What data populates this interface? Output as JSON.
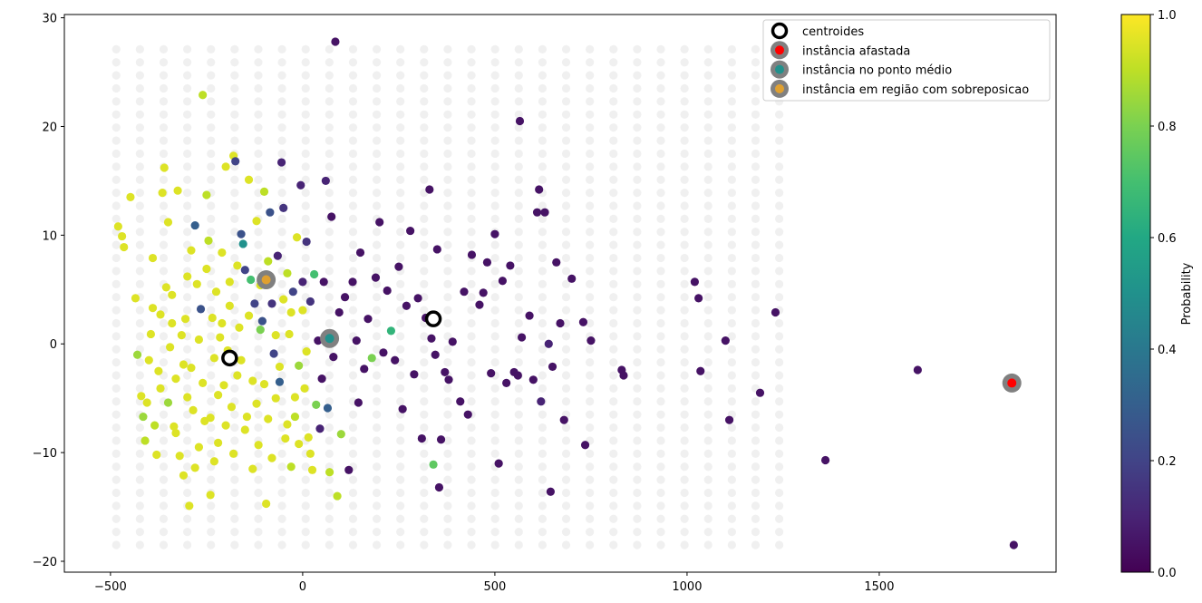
{
  "chart_data": {
    "type": "scatter",
    "title": "",
    "xlabel": "",
    "ylabel": "",
    "xlim": [
      -620,
      1960
    ],
    "ylim": [
      -21,
      30.3
    ],
    "x_ticks": [
      -500,
      0,
      500,
      1000,
      1500
    ],
    "y_ticks": [
      -20,
      -10,
      0,
      10,
      20,
      30
    ],
    "x_tick_labels": [
      "−500",
      "0",
      "500",
      "1000",
      "1500"
    ],
    "y_tick_labels": [
      "−20",
      "−10",
      "0",
      "10",
      "20",
      "30"
    ],
    "grid": false,
    "colormap": "viridis",
    "colorbar": {
      "label": "Probability",
      "range": [
        0,
        1
      ],
      "ticks": [
        "0.0",
        "0.2",
        "0.4",
        "0.6",
        "0.8",
        "1.0"
      ]
    },
    "background_grid": {
      "x_start": -485,
      "x_step": 61.6,
      "x_count": 29,
      "y_start": -18.5,
      "y_step": 1.2,
      "y_count": 39,
      "color": "#f0f0f0"
    },
    "legend": {
      "placement": "top-right",
      "entries": [
        {
          "label": "centroides",
          "marker": "ring",
          "color": "#000000"
        },
        {
          "label": "instância afastada",
          "marker": "dot",
          "color": "#ff0000"
        },
        {
          "label": "instância no ponto médio",
          "marker": "dot",
          "color": "#21918c"
        },
        {
          "label": "instância em região com sobreposicao",
          "marker": "dot",
          "color": "#e0a030"
        }
      ]
    },
    "centroids": [
      {
        "x": -190,
        "y": -1.3
      },
      {
        "x": 340,
        "y": 2.3
      }
    ],
    "highlights": [
      {
        "name": "instância afastada",
        "x": 1845,
        "y": -3.6,
        "color": "#ff0000"
      },
      {
        "name": "instância no ponto médio",
        "x": 70,
        "y": 0.5,
        "color": "#21918c"
      },
      {
        "name": "instância em região com sobreposicao",
        "x": -95,
        "y": 5.9,
        "color": "#e0a030"
      }
    ],
    "points": [
      [
        -480,
        10.8,
        0.95
      ],
      [
        -470,
        9.9,
        0.95
      ],
      [
        -465,
        8.9,
        0.95
      ],
      [
        -435,
        4.2,
        0.95
      ],
      [
        -430,
        -1,
        0.85
      ],
      [
        -420,
        -4.8,
        0.95
      ],
      [
        -415,
        -6.7,
        0.85
      ],
      [
        -410,
        -8.9,
        0.9
      ],
      [
        -405,
        -5.4,
        0.95
      ],
      [
        -400,
        -1.5,
        0.95
      ],
      [
        -395,
        0.9,
        0.95
      ],
      [
        -390,
        3.3,
        0.95
      ],
      [
        -385,
        -7.5,
        0.9
      ],
      [
        -380,
        -10.2,
        0.95
      ],
      [
        -375,
        -2.5,
        0.95
      ],
      [
        -370,
        2.7,
        0.95
      ],
      [
        -365,
        13.9,
        0.95
      ],
      [
        -360,
        16.2,
        0.95
      ],
      [
        -355,
        5.2,
        0.95
      ],
      [
        -350,
        -5.4,
        0.85
      ],
      [
        -345,
        -0.3,
        0.95
      ],
      [
        -340,
        1.9,
        0.95
      ],
      [
        -335,
        -7.6,
        0.95
      ],
      [
        -330,
        -3.2,
        0.95
      ],
      [
        -325,
        14.1,
        0.95
      ],
      [
        -320,
        -10.3,
        0.95
      ],
      [
        -315,
        0.8,
        0.95
      ],
      [
        -310,
        -1.9,
        0.95
      ],
      [
        -305,
        2.3,
        0.95
      ],
      [
        -300,
        -4.9,
        0.95
      ],
      [
        -295,
        -14.9,
        0.95
      ],
      [
        -290,
        8.6,
        0.95
      ],
      [
        -285,
        -6.1,
        0.95
      ],
      [
        -280,
        10.9,
        0.3
      ],
      [
        -275,
        5.5,
        0.95
      ],
      [
        -270,
        -9.5,
        0.95
      ],
      [
        -265,
        3.2,
        0.25
      ],
      [
        -260,
        22.9,
        0.9
      ],
      [
        -255,
        -7.1,
        0.95
      ],
      [
        -250,
        13.7,
        0.9
      ],
      [
        -245,
        9.5,
        0.9
      ],
      [
        -240,
        -13.9,
        0.95
      ],
      [
        -235,
        2.4,
        0.95
      ],
      [
        -230,
        -1.3,
        0.95
      ],
      [
        -225,
        4.8,
        0.95
      ],
      [
        -220,
        -9.1,
        0.95
      ],
      [
        -215,
        0.6,
        0.95
      ],
      [
        -210,
        8.4,
        0.95
      ],
      [
        -205,
        -3.8,
        0.95
      ],
      [
        -200,
        16.3,
        0.95
      ],
      [
        -195,
        -0.6,
        0.95
      ],
      [
        -190,
        5.7,
        0.95
      ],
      [
        -185,
        -5.8,
        0.95
      ],
      [
        -180,
        17.3,
        0.95
      ],
      [
        -175,
        16.8,
        0.2
      ],
      [
        -170,
        -2.9,
        0.95
      ],
      [
        -165,
        1.5,
        0.95
      ],
      [
        -160,
        10.1,
        0.25
      ],
      [
        -155,
        9.2,
        0.5
      ],
      [
        -150,
        6.8,
        0.2
      ],
      [
        -145,
        -6.7,
        0.95
      ],
      [
        -140,
        15.1,
        0.95
      ],
      [
        -135,
        5.9,
        0.7
      ],
      [
        -130,
        -3.4,
        0.95
      ],
      [
        -125,
        3.7,
        0.2
      ],
      [
        -120,
        11.3,
        0.95
      ],
      [
        -115,
        -9.3,
        0.95
      ],
      [
        -110,
        1.3,
        0.8
      ],
      [
        -105,
        2.1,
        0.25
      ],
      [
        -100,
        14,
        0.9
      ],
      [
        -95,
        -14.7,
        0.95
      ],
      [
        -90,
        7.6,
        0.9
      ],
      [
        -85,
        12.1,
        0.25
      ],
      [
        -80,
        3.7,
        0.15
      ],
      [
        -75,
        -0.9,
        0.2
      ],
      [
        -70,
        -5,
        0.95
      ],
      [
        -65,
        8.1,
        0.1
      ],
      [
        -60,
        -3.5,
        0.3
      ],
      [
        -55,
        16.7,
        0.1
      ],
      [
        -50,
        12.5,
        0.15
      ],
      [
        -45,
        -8.7,
        0.95
      ],
      [
        -40,
        6.5,
        0.9
      ],
      [
        -35,
        0.9,
        0.95
      ],
      [
        -30,
        -11.3,
        0.9
      ],
      [
        -25,
        4.8,
        0.2
      ],
      [
        -20,
        -6.7,
        0.9
      ],
      [
        -15,
        9.8,
        0.95
      ],
      [
        -10,
        -2,
        0.85
      ],
      [
        -5,
        14.6,
        0.1
      ],
      [
        0,
        5.7,
        0.1
      ],
      [
        5,
        -4.1,
        0.95
      ],
      [
        10,
        9.4,
        0.15
      ],
      [
        15,
        -8.6,
        0.95
      ],
      [
        20,
        3.9,
        0.15
      ],
      [
        25,
        -11.6,
        0.95
      ],
      [
        30,
        6.4,
        0.7
      ],
      [
        35,
        -5.6,
        0.8
      ],
      [
        40,
        0.3,
        0.05
      ],
      [
        45,
        -7.8,
        0.1
      ],
      [
        50,
        -3.2,
        0.05
      ],
      [
        55,
        5.7,
        0.05
      ],
      [
        60,
        15,
        0.1
      ],
      [
        65,
        -5.9,
        0.3
      ],
      [
        70,
        -11.8,
        0.9
      ],
      [
        75,
        11.7,
        0.05
      ],
      [
        80,
        -1.2,
        0.05
      ],
      [
        85,
        27.8,
        0.05
      ],
      [
        90,
        -14,
        0.9
      ],
      [
        95,
        2.9,
        0.05
      ],
      [
        100,
        -8.3,
        0.85
      ],
      [
        110,
        4.3,
        0.05
      ],
      [
        120,
        -11.6,
        0.05
      ],
      [
        130,
        5.7,
        0.05
      ],
      [
        140,
        0.3,
        0.05
      ],
      [
        145,
        -5.4,
        0.05
      ],
      [
        150,
        8.4,
        0.05
      ],
      [
        160,
        -2.3,
        0.05
      ],
      [
        170,
        2.3,
        0.05
      ],
      [
        180,
        -1.3,
        0.8
      ],
      [
        190,
        6.1,
        0.05
      ],
      [
        200,
        11.2,
        0.05
      ],
      [
        210,
        -0.8,
        0.05
      ],
      [
        220,
        4.9,
        0.05
      ],
      [
        230,
        1.2,
        0.65
      ],
      [
        240,
        -1.5,
        0.05
      ],
      [
        250,
        7.1,
        0.05
      ],
      [
        260,
        -6,
        0.05
      ],
      [
        270,
        3.5,
        0.05
      ],
      [
        280,
        10.4,
        0.05
      ],
      [
        290,
        -2.8,
        0.05
      ],
      [
        300,
        4.2,
        0.05
      ],
      [
        310,
        -8.7,
        0.05
      ],
      [
        320,
        2.4,
        0.05
      ],
      [
        330,
        14.2,
        0.05
      ],
      [
        335,
        0.5,
        0.05
      ],
      [
        340,
        -11.1,
        0.75
      ],
      [
        345,
        -1,
        0.05
      ],
      [
        350,
        8.7,
        0.05
      ],
      [
        355,
        -13.2,
        0.05
      ],
      [
        360,
        -8.8,
        0.05
      ],
      [
        370,
        -2.6,
        0.05
      ],
      [
        380,
        -3.3,
        0.05
      ],
      [
        390,
        0.2,
        0.05
      ],
      [
        410,
        -5.3,
        0.05
      ],
      [
        420,
        4.8,
        0.05
      ],
      [
        430,
        -6.5,
        0.05
      ],
      [
        440,
        8.2,
        0.05
      ],
      [
        460,
        3.6,
        0.05
      ],
      [
        470,
        4.7,
        0.05
      ],
      [
        480,
        7.5,
        0.05
      ],
      [
        490,
        -2.7,
        0.05
      ],
      [
        500,
        10.1,
        0.05
      ],
      [
        510,
        -11,
        0.05
      ],
      [
        520,
        5.8,
        0.05
      ],
      [
        530,
        -3.6,
        0.05
      ],
      [
        540,
        7.2,
        0.05
      ],
      [
        550,
        -2.6,
        0.05
      ],
      [
        560,
        -2.9,
        0.05
      ],
      [
        565,
        20.5,
        0.05
      ],
      [
        570,
        0.6,
        0.05
      ],
      [
        590,
        2.6,
        0.05
      ],
      [
        600,
        -3.3,
        0.05
      ],
      [
        610,
        12.1,
        0.05
      ],
      [
        615,
        14.2,
        0.05
      ],
      [
        620,
        -5.3,
        0.1
      ],
      [
        630,
        12.1,
        0.05
      ],
      [
        640,
        0,
        0.1
      ],
      [
        645,
        -13.6,
        0.05
      ],
      [
        650,
        -2.1,
        0.05
      ],
      [
        660,
        7.5,
        0.05
      ],
      [
        670,
        1.9,
        0.05
      ],
      [
        680,
        -7,
        0.05
      ],
      [
        700,
        6,
        0.05
      ],
      [
        730,
        2,
        0.05
      ],
      [
        735,
        -9.3,
        0.05
      ],
      [
        750,
        0.3,
        0.05
      ],
      [
        830,
        -2.4,
        0.05
      ],
      [
        835,
        -2.9,
        0.05
      ],
      [
        1020,
        5.7,
        0.05
      ],
      [
        1030,
        4.2,
        0.05
      ],
      [
        1035,
        -2.5,
        0.05
      ],
      [
        1100,
        0.3,
        0.05
      ],
      [
        1110,
        -7,
        0.05
      ],
      [
        1190,
        -4.5,
        0.05
      ],
      [
        1230,
        2.9,
        0.05
      ],
      [
        1360,
        -10.7,
        0.05
      ],
      [
        1600,
        -2.4,
        0.05
      ],
      [
        1850,
        -18.5,
        0.05
      ],
      [
        -448,
        13.5,
        0.95
      ],
      [
        -390,
        7.9,
        0.95
      ],
      [
        -370,
        -4.1,
        0.95
      ],
      [
        -350,
        11.2,
        0.95
      ],
      [
        -340,
        4.5,
        0.95
      ],
      [
        -330,
        -8.2,
        0.95
      ],
      [
        -310,
        -12.1,
        0.95
      ],
      [
        -300,
        6.2,
        0.95
      ],
      [
        -290,
        -2.2,
        0.95
      ],
      [
        -280,
        -11.4,
        0.95
      ],
      [
        -270,
        0.4,
        0.95
      ],
      [
        -260,
        -3.6,
        0.95
      ],
      [
        -250,
        6.9,
        0.95
      ],
      [
        -240,
        -6.8,
        0.95
      ],
      [
        -230,
        -10.8,
        0.95
      ],
      [
        -220,
        -4.7,
        0.95
      ],
      [
        -210,
        1.9,
        0.95
      ],
      [
        -200,
        -7.5,
        0.95
      ],
      [
        -190,
        3.5,
        0.95
      ],
      [
        -180,
        -10.1,
        0.95
      ],
      [
        -170,
        7.2,
        0.95
      ],
      [
        -160,
        -1.5,
        0.95
      ],
      [
        -150,
        -7.9,
        0.95
      ],
      [
        -140,
        2.6,
        0.95
      ],
      [
        -130,
        -11.5,
        0.95
      ],
      [
        -120,
        -5.5,
        0.95
      ],
      [
        -110,
        5.4,
        0.95
      ],
      [
        -100,
        -3.7,
        0.95
      ],
      [
        -90,
        -6.9,
        0.95
      ],
      [
        -80,
        -10.5,
        0.95
      ],
      [
        -70,
        0.8,
        0.95
      ],
      [
        -60,
        -2.1,
        0.95
      ],
      [
        -50,
        4.1,
        0.95
      ],
      [
        -40,
        -7.4,
        0.95
      ],
      [
        -30,
        2.9,
        0.95
      ],
      [
        -20,
        -4.9,
        0.95
      ],
      [
        -10,
        -9.2,
        0.95
      ],
      [
        0,
        3.1,
        0.95
      ],
      [
        10,
        -0.7,
        0.95
      ],
      [
        20,
        -10.1,
        0.95
      ]
    ]
  }
}
